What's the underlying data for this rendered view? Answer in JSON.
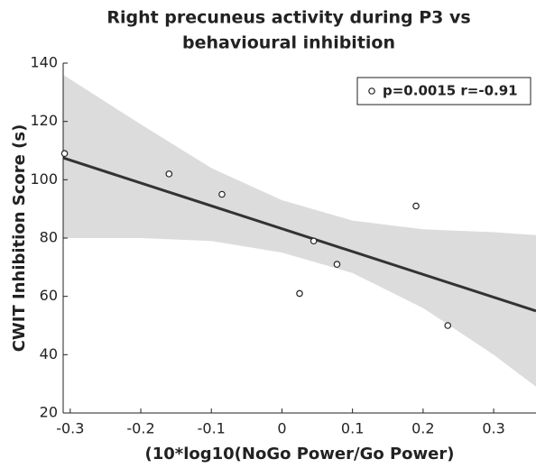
{
  "chart_data": {
    "type": "scatter",
    "title": [
      "Right precuneus activity during P3 vs",
      "behavioural inhibition"
    ],
    "x_label": "(10*log10(NoGo Power/Go Power)",
    "y_label": "CWIT Inhibition Score (s)",
    "xlim": [
      -0.31,
      0.36
    ],
    "ylim": [
      20,
      140
    ],
    "xticks": [
      -0.3,
      -0.2,
      -0.1,
      0,
      0.1,
      0.2,
      0.3
    ],
    "yticks": [
      20,
      40,
      60,
      80,
      100,
      120,
      140
    ],
    "legend": "top-right",
    "series": [
      {
        "name": "p=0.0015 r=-0.91",
        "color": "#222222",
        "x": [
          -0.308,
          -0.16,
          -0.085,
          0.045,
          0.025,
          0.078,
          0.19,
          0.235
        ],
        "y": [
          109,
          102,
          95,
          79,
          61,
          71,
          91,
          50
        ]
      }
    ],
    "fit": {
      "color": "#333333",
      "x": [
        -0.31,
        0.36
      ],
      "y": [
        107.5,
        55
      ]
    },
    "band": {
      "color": "#dcdcdc",
      "x": [
        -0.31,
        -0.2,
        -0.1,
        0,
        0.1,
        0.2,
        0.3,
        0.36
      ],
      "upper": [
        136,
        119,
        104,
        93,
        86,
        83,
        82,
        81
      ],
      "lower": [
        80,
        80,
        79,
        75,
        68,
        56,
        40,
        29
      ]
    }
  }
}
